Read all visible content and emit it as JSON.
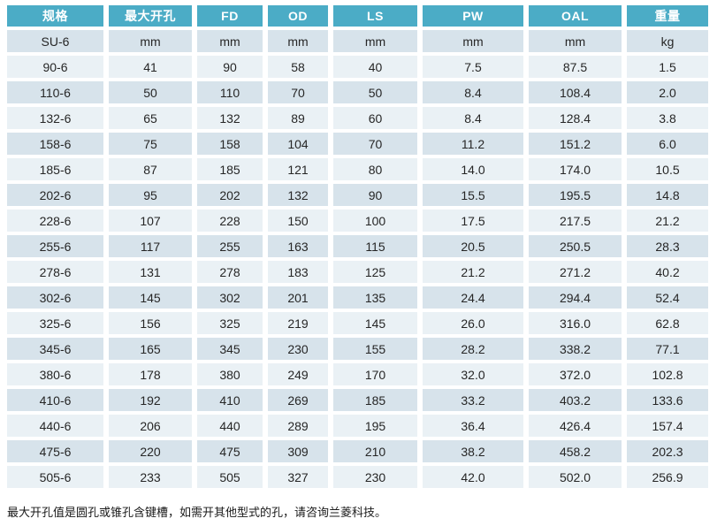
{
  "colors": {
    "header_bg": "#4BACC6",
    "header_text": "#FFFFFF",
    "row_dark_bg": "#D7E3EB",
    "row_light_bg": "#EAF1F5",
    "body_text": "#262626",
    "footnote_text": "#1A1A1A"
  },
  "table": {
    "columns": [
      {
        "id": "spec",
        "label": "规格"
      },
      {
        "id": "max-bore",
        "label": "最大开孔"
      },
      {
        "id": "fd",
        "label": "FD"
      },
      {
        "id": "od",
        "label": "OD"
      },
      {
        "id": "ls",
        "label": "LS"
      },
      {
        "id": "pw",
        "label": "PW"
      },
      {
        "id": "oal",
        "label": "OAL"
      },
      {
        "id": "weight",
        "label": "重量"
      }
    ],
    "unit_row": [
      "SU-6",
      "mm",
      "mm",
      "mm",
      "mm",
      "mm",
      "mm",
      "kg"
    ],
    "rows": [
      [
        "90-6",
        "41",
        "90",
        "58",
        "40",
        "7.5",
        "87.5",
        "1.5"
      ],
      [
        "110-6",
        "50",
        "110",
        "70",
        "50",
        "8.4",
        "108.4",
        "2.0"
      ],
      [
        "132-6",
        "65",
        "132",
        "89",
        "60",
        "8.4",
        "128.4",
        "3.8"
      ],
      [
        "158-6",
        "75",
        "158",
        "104",
        "70",
        "11.2",
        "151.2",
        "6.0"
      ],
      [
        "185-6",
        "87",
        "185",
        "121",
        "80",
        "14.0",
        "174.0",
        "10.5"
      ],
      [
        "202-6",
        "95",
        "202",
        "132",
        "90",
        "15.5",
        "195.5",
        "14.8"
      ],
      [
        "228-6",
        "107",
        "228",
        "150",
        "100",
        "17.5",
        "217.5",
        "21.2"
      ],
      [
        "255-6",
        "117",
        "255",
        "163",
        "115",
        "20.5",
        "250.5",
        "28.3"
      ],
      [
        "278-6",
        "131",
        "278",
        "183",
        "125",
        "21.2",
        "271.2",
        "40.2"
      ],
      [
        "302-6",
        "145",
        "302",
        "201",
        "135",
        "24.4",
        "294.4",
        "52.4"
      ],
      [
        "325-6",
        "156",
        "325",
        "219",
        "145",
        "26.0",
        "316.0",
        "62.8"
      ],
      [
        "345-6",
        "165",
        "345",
        "230",
        "155",
        "28.2",
        "338.2",
        "77.1"
      ],
      [
        "380-6",
        "178",
        "380",
        "249",
        "170",
        "32.0",
        "372.0",
        "102.8"
      ],
      [
        "410-6",
        "192",
        "410",
        "269",
        "185",
        "33.2",
        "403.2",
        "133.6"
      ],
      [
        "440-6",
        "206",
        "440",
        "289",
        "195",
        "36.4",
        "426.4",
        "157.4"
      ],
      [
        "475-6",
        "220",
        "475",
        "309",
        "210",
        "38.2",
        "458.2",
        "202.3"
      ],
      [
        "505-6",
        "233",
        "505",
        "327",
        "230",
        "42.0",
        "502.0",
        "256.9"
      ]
    ]
  },
  "footnote": "最大开孔值是圆孔或锥孔含键槽，如需开其他型式的孔，请咨询兰菱科技。"
}
